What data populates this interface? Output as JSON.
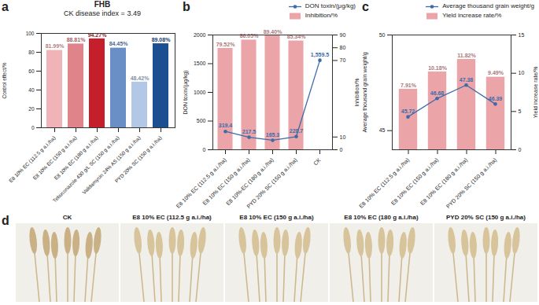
{
  "chart_data": [
    {
      "panel": "a",
      "type": "bar",
      "title": "FHB",
      "subtitle": "CK disease index = 3.49",
      "ylabel": "Control effect/%",
      "categories": [
        "E8 10% EC (112.5 g a.i./ha)",
        "E8 10% EC (150 g a.i./ha)",
        "E8 10% EC (180 g a.i./ha)",
        "Tebuconazole 430 g/L SC (150 g a.i./ha)",
        "Validamycin 24% AS (150 g a.i./ha)",
        "PYD 20% SC (150 g a.i./ha)"
      ],
      "values": [
        81.99,
        88.81,
        94.27,
        84.45,
        48.42,
        89.08
      ],
      "value_labels": [
        "81.99%",
        "88.81%",
        "94.27%",
        "84.45%",
        "48.42%",
        "89.08%"
      ],
      "colors": [
        "#f0b3b7",
        "#e0848b",
        "#c41f2b",
        "#6a8fc6",
        "#b3c7e6",
        "#1c4f92"
      ],
      "ylim": [
        0,
        100
      ],
      "yticks": [
        0,
        20,
        40,
        60,
        80,
        100
      ],
      "data_labels": true
    },
    {
      "panel": "b",
      "type": "combo",
      "legend": "top",
      "ylabel": "DON toxin/(μg/kg)",
      "y2label": "Inhibition/%",
      "categories": [
        "E8 10% EC (112.5 g a.i./ha)",
        "E8 10% EC (150 g a.i./ha)",
        "E8 10%-EC (180 g a.i./ha)",
        "PYD 20% SC (150 g a.i./ha)",
        "CK"
      ],
      "ylim": [
        0,
        2000
      ],
      "yticks": [
        0,
        500,
        1000,
        1500,
        2000
      ],
      "y2lim": [
        0,
        90
      ],
      "y2ticks": [
        0,
        10,
        70,
        80,
        90
      ],
      "data_labels": true,
      "series": [
        {
          "name": "DON toxin/(μg/kg)",
          "type": "line",
          "marker": "circle",
          "color": "#3c6ba8",
          "values": [
            319.4,
            217.5,
            165.3,
            228.7,
            1559.5
          ]
        },
        {
          "name": "Inhibition/%",
          "type": "bar",
          "axis": "y2",
          "color": "#eba4a8",
          "values": [
            79.52,
            86.05,
            89.4,
            85.34,
            null
          ],
          "value_labels": [
            "79.52%",
            "86.05%",
            "89.40%",
            "85.34%",
            null
          ]
        }
      ]
    },
    {
      "panel": "c",
      "type": "combo",
      "legend": "top",
      "ylabel": "Average thousand grain weight/g",
      "y2label": "Yield increase rate/%",
      "categories": [
        "E8 10% EC (112.5 g a.i./ha)",
        "E8 10% EC (150 g a.i./ha)",
        "E8 10% EC (180 g a.i./ha)",
        "PYD 20% SC (150 g a.i./ha)"
      ],
      "ylim": [
        44,
        50
      ],
      "yticks": [
        45,
        50
      ],
      "y2lim": [
        0,
        15
      ],
      "y2ticks": [
        0,
        5,
        10,
        15
      ],
      "data_labels": true,
      "series": [
        {
          "name": "Average thousand grain weight/g",
          "type": "line",
          "marker": "circle",
          "color": "#3c6ba8",
          "values": [
            45.72,
            46.68,
            47.38,
            46.39
          ]
        },
        {
          "name": "Yield increase rate/%",
          "type": "bar",
          "axis": "y2",
          "color": "#eba4a8",
          "values": [
            7.91,
            10.18,
            11.82,
            9.49
          ],
          "value_labels": [
            "7.91%",
            "10.18%",
            "11.82%",
            "9.49%"
          ]
        }
      ]
    }
  ],
  "photo_panel": {
    "panel": "d",
    "labels": [
      "CK",
      "E8 10% EC (112.5 g a.i./ha)",
      "E8 10% EC (150 g a.i./ha)",
      "E8 10% EC (180 g a.i./ha)",
      "PYD 20% SC (150 g a.i./ha)"
    ]
  }
}
